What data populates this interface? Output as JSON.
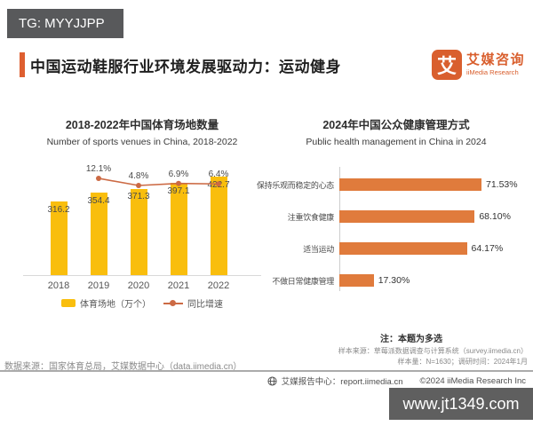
{
  "top_tag": {
    "text": "TG: MYYJJPP"
  },
  "header": {
    "title": "中国运动鞋服行业环境发展驱动力：运动健身",
    "accent_color": "#DE5F30"
  },
  "logo": {
    "glyph": "艾",
    "name_cn": "艾媒咨询",
    "name_en": "iiMedia Research",
    "brand_color": "#D95F2E"
  },
  "chart_data": [
    {
      "type": "bar",
      "title": "2018-2022年中国体育场地数量",
      "subtitle": "Number of sports venues in China, 2018-2022",
      "categories": [
        "2018",
        "2019",
        "2020",
        "2021",
        "2022"
      ],
      "series": [
        {
          "name": "体育场地（万个）",
          "type": "bar",
          "values": [
            316.2,
            354.4,
            371.3,
            397.1,
            422.7
          ],
          "color": "#F9BE0D"
        },
        {
          "name": "同比增速",
          "type": "line",
          "unit": "%",
          "values": [
            null,
            12.1,
            4.8,
            6.9,
            6.4
          ],
          "labels": [
            "",
            "12.1%",
            "4.8%",
            "6.9%",
            "6.4%"
          ],
          "color": "#CC6A44"
        }
      ],
      "legend_position": "bottom",
      "ylim": [
        0,
        450
      ],
      "grid": false
    },
    {
      "type": "bar-horizontal",
      "title": "2024年中国公众健康管理方式",
      "subtitle": "Public health management in China in 2024",
      "categories": [
        "保持乐观而稳定的心态",
        "注重饮食健康",
        "适当运动",
        "不做日常健康管理"
      ],
      "values": [
        71.53,
        68.1,
        64.17,
        17.3
      ],
      "value_labels": [
        "71.53%",
        "68.10%",
        "64.17%",
        "17.30%"
      ],
      "color": "#E07B3C",
      "xlim": [
        0,
        75
      ],
      "note": "注：本题为多选",
      "sample_source": "样本来源：草莓派数据调查与计算系统（survey.iimedia.cn）",
      "sample_info": "样本量：N=1630；调研时间：2024年1月",
      "grid": false
    }
  ],
  "footer": {
    "data_source": "数据来源：国家体育总局，艾媒数据中心（data.iimedia.cn）",
    "report_center": "艾媒报告中心：report.iimedia.cn",
    "copyright": "©2024 iiMedia Research Inc"
  },
  "bottom_watermark": {
    "text": "www.jt1349.com"
  }
}
